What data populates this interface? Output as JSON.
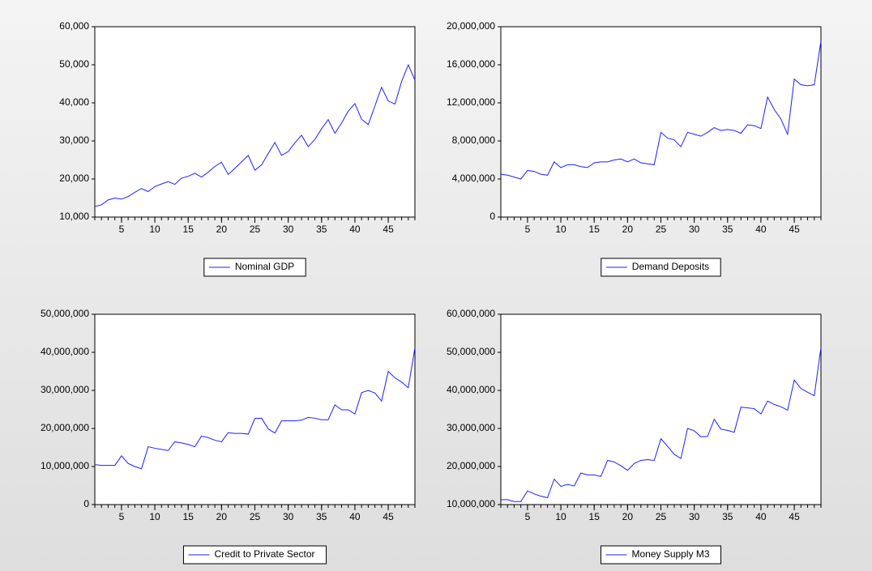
{
  "chart_data": [
    {
      "type": "line",
      "x": [
        1,
        2,
        3,
        4,
        5,
        6,
        7,
        8,
        9,
        10,
        11,
        12,
        13,
        14,
        15,
        16,
        17,
        18,
        19,
        20,
        21,
        22,
        23,
        24,
        25,
        26,
        27,
        28,
        29,
        30,
        31,
        32,
        33,
        34,
        35,
        36,
        37,
        38,
        39,
        40,
        41,
        42,
        43,
        44,
        45,
        46,
        47,
        48,
        49
      ],
      "xlim": [
        1,
        49
      ],
      "xticks": [
        5,
        10,
        15,
        20,
        25,
        30,
        35,
        40,
        45
      ],
      "ylim": [
        10000,
        60000
      ],
      "yticks": [
        {
          "value": 10000,
          "label": "10,000"
        },
        {
          "value": 20000,
          "label": "20,000"
        },
        {
          "value": 30000,
          "label": "30,000"
        },
        {
          "value": 40000,
          "label": "40,000"
        },
        {
          "value": 50000,
          "label": "50,000"
        },
        {
          "value": 60000,
          "label": "60,000"
        }
      ],
      "legend": "bottom",
      "series": [
        {
          "name": "Nominal GDP",
          "color": "#1f1fff",
          "values": [
            12800,
            13200,
            14500,
            15000,
            14700,
            15400,
            16500,
            17500,
            16700,
            18000,
            18700,
            19300,
            18600,
            20200,
            20700,
            21500,
            20500,
            21800,
            23300,
            24400,
            21200,
            22800,
            24500,
            26200,
            22300,
            23700,
            26700,
            29600,
            26200,
            27200,
            29500,
            31500,
            28500,
            30400,
            33200,
            35600,
            32000,
            34700,
            37800,
            39800,
            35700,
            34300,
            39200,
            44100,
            40500,
            39700,
            45600,
            50000,
            46000
          ]
        }
      ]
    },
    {
      "type": "line",
      "x": [
        1,
        2,
        3,
        4,
        5,
        6,
        7,
        8,
        9,
        10,
        11,
        12,
        13,
        14,
        15,
        16,
        17,
        18,
        19,
        20,
        21,
        22,
        23,
        24,
        25,
        26,
        27,
        28,
        29,
        30,
        31,
        32,
        33,
        34,
        35,
        36,
        37,
        38,
        39,
        40,
        41,
        42,
        43,
        44,
        45,
        46,
        47,
        48,
        49
      ],
      "xlim": [
        1,
        49
      ],
      "xticks": [
        5,
        10,
        15,
        20,
        25,
        30,
        35,
        40,
        45
      ],
      "ylim": [
        0,
        20000000
      ],
      "yticks": [
        0,
        {
          "value": 4000000,
          "label": "4,000,000"
        },
        {
          "value": 8000000,
          "label": "8,000,000"
        },
        {
          "value": 12000000,
          "label": "12,000,000"
        },
        {
          "value": 16000000,
          "label": "16,000,000"
        },
        {
          "value": 20000000,
          "label": "20,000,000"
        }
      ],
      "legend": "bottom",
      "series": [
        {
          "name": "Demand Deposits",
          "color": "#1f1fff",
          "values": [
            4500000,
            4400000,
            4200000,
            4000000,
            4900000,
            4800000,
            4500000,
            4400000,
            5800000,
            5200000,
            5500000,
            5500000,
            5300000,
            5200000,
            5700000,
            5800000,
            5800000,
            6000000,
            6100000,
            5800000,
            6100000,
            5700000,
            5600000,
            5500000,
            8900000,
            8300000,
            8100000,
            7400000,
            8900000,
            8700000,
            8500000,
            8900000,
            9400000,
            9100000,
            9200000,
            9100000,
            8800000,
            9700000,
            9600000,
            9300000,
            12600000,
            11300000,
            10300000,
            8700000,
            14500000,
            13900000,
            13800000,
            13900000,
            18500000
          ]
        }
      ]
    },
    {
      "type": "line",
      "x": [
        1,
        2,
        3,
        4,
        5,
        6,
        7,
        8,
        9,
        10,
        11,
        12,
        13,
        14,
        15,
        16,
        17,
        18,
        19,
        20,
        21,
        22,
        23,
        24,
        25,
        26,
        27,
        28,
        29,
        30,
        31,
        32,
        33,
        34,
        35,
        36,
        37,
        38,
        39,
        40,
        41,
        42,
        43,
        44,
        45,
        46,
        47,
        48,
        49
      ],
      "xlim": [
        1,
        49
      ],
      "xticks": [
        5,
        10,
        15,
        20,
        25,
        30,
        35,
        40,
        45
      ],
      "ylim": [
        0,
        50000000
      ],
      "yticks": [
        0,
        {
          "value": 10000000,
          "label": "10,000,000"
        },
        {
          "value": 20000000,
          "label": "20,000,000"
        },
        {
          "value": 30000000,
          "label": "30,000,000"
        },
        {
          "value": 40000000,
          "label": "40,000,000"
        },
        {
          "value": 50000000,
          "label": "50,000,000"
        }
      ],
      "legend": "bottom",
      "series": [
        {
          "name": "Credit to Private Sector",
          "color": "#1f1fff",
          "values": [
            10500000,
            10300000,
            10300000,
            10300000,
            12800000,
            10800000,
            10000000,
            9400000,
            15200000,
            14800000,
            14500000,
            14200000,
            16500000,
            16200000,
            15800000,
            15200000,
            18000000,
            17600000,
            16900000,
            16500000,
            18900000,
            18700000,
            18700000,
            18500000,
            22600000,
            22700000,
            19900000,
            18800000,
            22000000,
            22000000,
            22000000,
            22200000,
            22900000,
            22700000,
            22300000,
            22300000,
            26200000,
            24900000,
            24900000,
            23800000,
            29400000,
            30000000,
            29300000,
            27200000,
            35000000,
            33300000,
            32200000,
            30700000,
            41200000
          ]
        }
      ]
    },
    {
      "type": "line",
      "x": [
        1,
        2,
        3,
        4,
        5,
        6,
        7,
        8,
        9,
        10,
        11,
        12,
        13,
        14,
        15,
        16,
        17,
        18,
        19,
        20,
        21,
        22,
        23,
        24,
        25,
        26,
        27,
        28,
        29,
        30,
        31,
        32,
        33,
        34,
        35,
        36,
        37,
        38,
        39,
        40,
        41,
        42,
        43,
        44,
        45,
        46,
        47,
        48,
        49
      ],
      "xlim": [
        1,
        49
      ],
      "xticks": [
        5,
        10,
        15,
        20,
        25,
        30,
        35,
        40,
        45
      ],
      "ylim": [
        10000000,
        60000000
      ],
      "yticks": [
        {
          "value": 10000000,
          "label": "10,000,000"
        },
        {
          "value": 20000000,
          "label": "20,000,000"
        },
        {
          "value": 30000000,
          "label": "30,000,000"
        },
        {
          "value": 40000000,
          "label": "40,000,000"
        },
        {
          "value": 50000000,
          "label": "50,000,000"
        },
        {
          "value": 60000000,
          "label": "60,000,000"
        }
      ],
      "legend": "bottom",
      "series": [
        {
          "name": "Money Supply M3",
          "color": "#1f1fff",
          "values": [
            11300000,
            11300000,
            10800000,
            10800000,
            13600000,
            12800000,
            12200000,
            11800000,
            16700000,
            14800000,
            15300000,
            14900000,
            18300000,
            17800000,
            17800000,
            17400000,
            21600000,
            21200000,
            20200000,
            19000000,
            20800000,
            21600000,
            21800000,
            21600000,
            27300000,
            25300000,
            23200000,
            22100000,
            30000000,
            29400000,
            27800000,
            27900000,
            32400000,
            29800000,
            29500000,
            29000000,
            35600000,
            35400000,
            35200000,
            33800000,
            37200000,
            36300000,
            35700000,
            34800000,
            42700000,
            40500000,
            39500000,
            38600000,
            51300000
          ]
        }
      ]
    }
  ]
}
